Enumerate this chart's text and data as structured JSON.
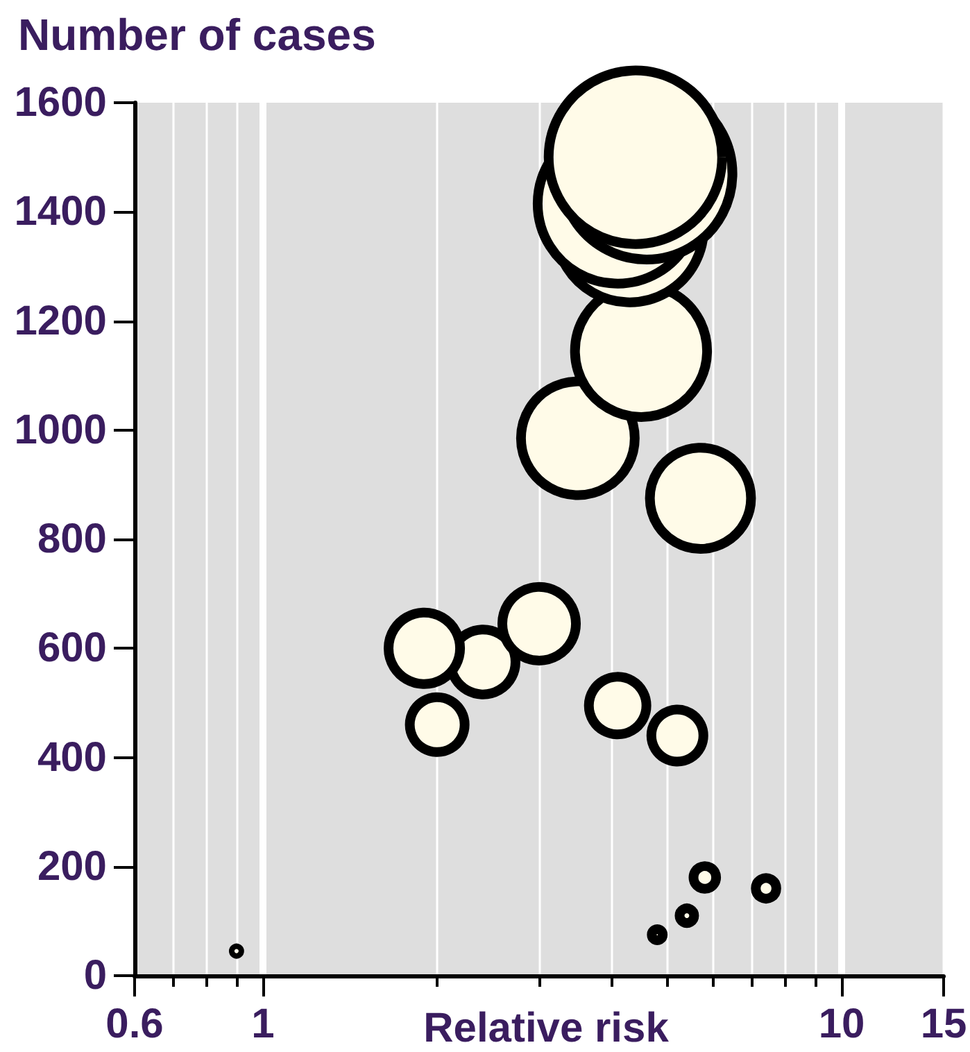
{
  "chart_data": {
    "type": "bubble",
    "xlabel": "Relative risk",
    "ylabel": "Number of cases",
    "x": [
      0.9,
      4.8,
      5.4,
      5.8,
      7.4,
      2.0,
      2.4,
      1.9,
      3.0,
      4.1,
      5.2,
      5.7,
      3.5,
      4.5,
      4.3,
      4.1,
      4.6,
      4.4
    ],
    "values": [
      45,
      75,
      110,
      180,
      160,
      460,
      575,
      600,
      645,
      495,
      440,
      875,
      985,
      1145,
      1370,
      1415,
      1470,
      1500
    ],
    "sizes": [
      0.001,
      0.004,
      0.007,
      0.017,
      0.014,
      0.1,
      0.14,
      0.17,
      0.18,
      0.11,
      0.09,
      0.34,
      0.43,
      0.58,
      0.73,
      0.85,
      0.98,
      1
    ],
    "color": "#fffbe8",
    "marker": "circle",
    "log": "x",
    "xlim": [
      0.6,
      15
    ],
    "xticks": [
      0.6,
      {
        "value": 0.7,
        "label": null
      },
      {
        "value": 0.8,
        "label": null
      },
      {
        "value": 0.9,
        "label": null
      },
      1,
      {
        "value": 2,
        "label": null
      },
      {
        "value": 3,
        "label": null
      },
      {
        "value": 4,
        "label": null
      },
      {
        "value": 5,
        "label": null
      },
      {
        "value": 6,
        "label": null
      },
      {
        "value": 7,
        "label": null
      },
      {
        "value": 8,
        "label": null
      },
      {
        "value": 9,
        "label": null
      },
      10,
      15
    ],
    "ylim": [
      0,
      1600
    ],
    "yticks": [
      0,
      200,
      400,
      600,
      800,
      1000,
      1200,
      1400,
      1600
    ],
    "grid": "x"
  }
}
